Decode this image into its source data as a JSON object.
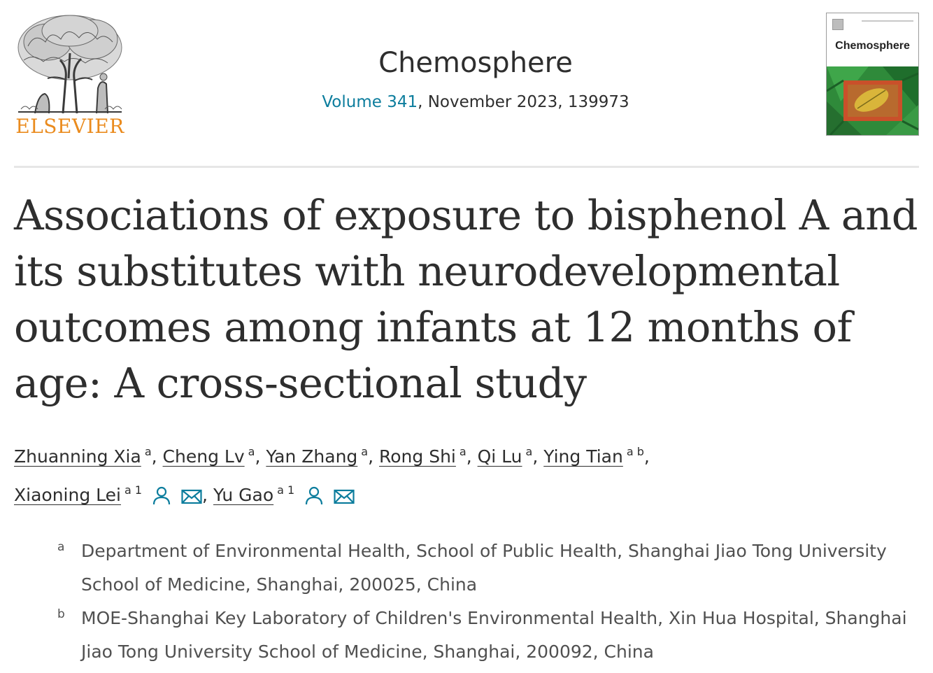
{
  "header": {
    "publisher": "ELSEVIER",
    "journal_title": "Chemosphere",
    "volume_link": "Volume 341",
    "issue_details": ", November 2023, 139973",
    "cover": {
      "title": "Chemosphere"
    },
    "colors": {
      "publisher_orange": "#ea8b1e",
      "link_teal": "#0c7d9d"
    }
  },
  "article": {
    "title": "Associations of exposure to bisphenol A and its substitutes with neurodevelopmental outcomes among infants at 12 months of age: A cross-sectional study"
  },
  "authors": [
    {
      "name": "Zhuanning Xia",
      "sup": "a"
    },
    {
      "name": "Cheng Lv",
      "sup": "a"
    },
    {
      "name": "Yan Zhang",
      "sup": "a"
    },
    {
      "name": "Rong Shi",
      "sup": "a"
    },
    {
      "name": "Qi Lu",
      "sup": "a"
    },
    {
      "name": "Ying Tian",
      "sup": "a b"
    },
    {
      "name": "Xiaoning Lei",
      "sup": "a 1",
      "icons": [
        "person-icon",
        "email-icon"
      ]
    },
    {
      "name": "Yu Gao",
      "sup": "a 1",
      "icons": [
        "person-icon",
        "email-icon"
      ]
    }
  ],
  "affiliations": [
    {
      "label": "a",
      "text": "Department of Environmental Health, School of Public Health, Shanghai Jiao Tong University School of Medicine, Shanghai, 200025, China"
    },
    {
      "label": "b",
      "text": "MOE-Shanghai Key Laboratory of Children's Environmental Health, Xin Hua Hospital, Shanghai Jiao Tong University School of Medicine, Shanghai, 200092, China"
    }
  ]
}
